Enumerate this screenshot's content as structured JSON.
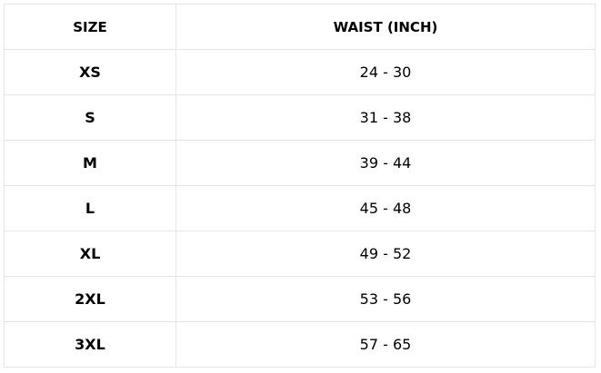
{
  "table": {
    "headers": [
      "SIZE",
      "WAIST (INCH)"
    ],
    "rows": [
      {
        "size": "XS",
        "waist": "24 - 30"
      },
      {
        "size": "S",
        "waist": "31 - 38"
      },
      {
        "size": "M",
        "waist": "39 - 44"
      },
      {
        "size": "L",
        "waist": "45 - 48"
      },
      {
        "size": "XL",
        "waist": "49 - 52"
      },
      {
        "size": "2XL",
        "waist": "53 - 56"
      },
      {
        "size": "3XL",
        "waist": "57 - 65"
      }
    ]
  }
}
